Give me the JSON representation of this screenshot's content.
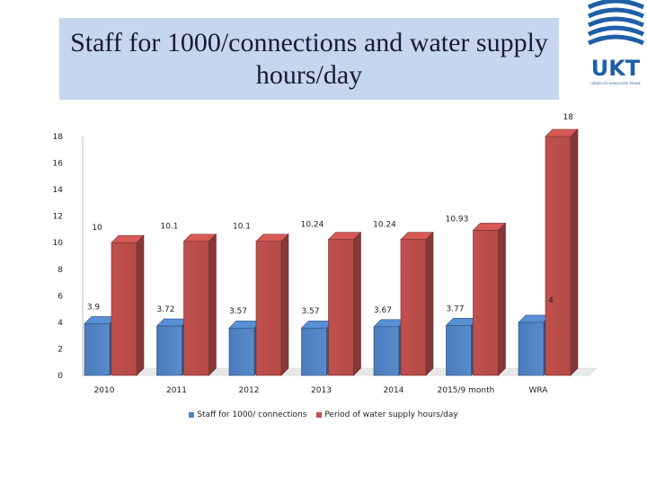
{
  "slide": {
    "title": "Staff for 1000/connections and water supply hours/day",
    "corner_label": "18"
  },
  "logo": {
    "text": "UKT",
    "subtitle": "UJËSJELLËS KANALIZIME TIRANË",
    "color": "#1f5fa8"
  },
  "chart_data": {
    "type": "bar",
    "categories": [
      "2010",
      "2011",
      "2012",
      "2013",
      "2014",
      "2015/9 month",
      "WRA"
    ],
    "series": [
      {
        "name": "Staff for 1000/ connections",
        "values": [
          3.9,
          3.72,
          3.57,
          3.57,
          3.67,
          3.77,
          4
        ],
        "labels": [
          "3.9",
          "3.72",
          "3.57",
          "3.57",
          "3.67",
          "3.77",
          "4"
        ],
        "color": "#4f81bd"
      },
      {
        "name": "Period of water supply hours/day",
        "values": [
          10,
          10.1,
          10.1,
          10.24,
          10.24,
          10.93,
          18
        ],
        "labels": [
          "10",
          "10.1",
          "10.1",
          "10.24",
          "10.24",
          "10.93",
          ""
        ],
        "color": "#c0504d"
      }
    ],
    "yticks": [
      "0",
      "2",
      "4",
      "6",
      "8",
      "10",
      "12",
      "14",
      "16",
      "18"
    ],
    "ylim": [
      0,
      18
    ],
    "grid": false,
    "bar_style": "3d",
    "legend_position": "bottom"
  }
}
